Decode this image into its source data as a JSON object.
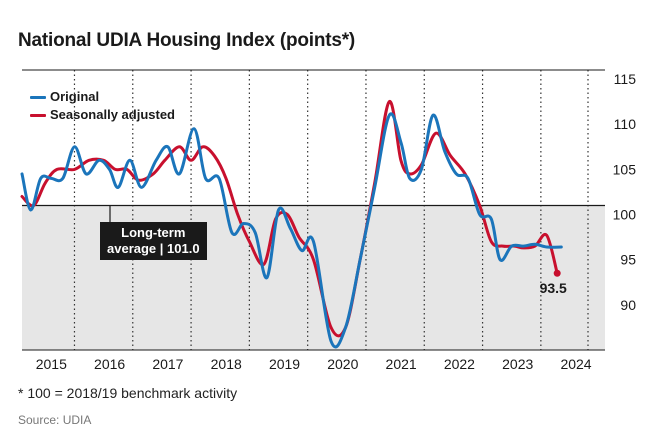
{
  "title": "National UDIA Housing Index (points*)",
  "footnote": "* 100 = 2018/19 benchmark activity",
  "source": "Source: UDIA",
  "colors": {
    "original": "#1b75bb",
    "seasonally_adjusted": "#c8102e",
    "text": "#1a1a1a",
    "shade": "#e6e6e6"
  },
  "chart_data": {
    "type": "line",
    "title": "National UDIA Housing Index (points*)",
    "xlabel": "",
    "ylabel": "",
    "xlim": [
      2014.6,
      2024.6
    ],
    "ylim": [
      85,
      116
    ],
    "x_ticks": [
      "2015",
      "2016",
      "2017",
      "2018",
      "2019",
      "2020",
      "2021",
      "2022",
      "2023",
      "2024"
    ],
    "y_ticks": [
      "90",
      "95",
      "100",
      "105",
      "110",
      "115"
    ],
    "y_tick_values": [
      90,
      95,
      100,
      105,
      110,
      115
    ],
    "grid": "vertical dotted at year boundaries",
    "legend": "top-left",
    "reference_line": {
      "value": 101.0,
      "label_line1": "Long-term",
      "label_line2": "average | 101.0"
    },
    "end_label": "93.5",
    "series": [
      {
        "name": "Original",
        "points": [
          [
            2014.6,
            104.5
          ],
          [
            2014.75,
            100.5
          ],
          [
            2014.92,
            104.0
          ],
          [
            2015.1,
            104.0
          ],
          [
            2015.3,
            104.0
          ],
          [
            2015.5,
            107.5
          ],
          [
            2015.7,
            104.5
          ],
          [
            2015.92,
            106.0
          ],
          [
            2016.1,
            105.0
          ],
          [
            2016.25,
            103.0
          ],
          [
            2016.45,
            106.0
          ],
          [
            2016.65,
            103.0
          ],
          [
            2016.9,
            106.0
          ],
          [
            2017.1,
            107.5
          ],
          [
            2017.3,
            104.5
          ],
          [
            2017.55,
            109.5
          ],
          [
            2017.75,
            104.0
          ],
          [
            2017.98,
            104.0
          ],
          [
            2018.2,
            98.0
          ],
          [
            2018.4,
            99.0
          ],
          [
            2018.6,
            98.0
          ],
          [
            2018.8,
            93.0
          ],
          [
            2019.0,
            100.5
          ],
          [
            2019.2,
            98.5
          ],
          [
            2019.4,
            96.0
          ],
          [
            2019.6,
            97.0
          ],
          [
            2019.9,
            86.0
          ],
          [
            2020.15,
            87.5
          ],
          [
            2020.4,
            95.0
          ],
          [
            2020.65,
            103.0
          ],
          [
            2020.9,
            111.0
          ],
          [
            2021.1,
            108.0
          ],
          [
            2021.25,
            104.0
          ],
          [
            2021.45,
            105.0
          ],
          [
            2021.65,
            111.0
          ],
          [
            2021.85,
            107.0
          ],
          [
            2022.05,
            104.5
          ],
          [
            2022.25,
            104.0
          ],
          [
            2022.45,
            100.0
          ],
          [
            2022.65,
            99.5
          ],
          [
            2022.8,
            95.0
          ],
          [
            2023.0,
            96.5
          ],
          [
            2023.2,
            96.5
          ],
          [
            2023.4,
            96.7
          ],
          [
            2023.6,
            96.4
          ],
          [
            2023.85,
            96.4
          ]
        ]
      },
      {
        "name": "Seasonally adjusted",
        "points": [
          [
            2014.6,
            102.0
          ],
          [
            2014.8,
            101.0
          ],
          [
            2015.0,
            103.5
          ],
          [
            2015.2,
            105.0
          ],
          [
            2015.5,
            105.0
          ],
          [
            2015.75,
            106.0
          ],
          [
            2016.0,
            106.0
          ],
          [
            2016.2,
            105.0
          ],
          [
            2016.4,
            105.0
          ],
          [
            2016.6,
            103.8
          ],
          [
            2016.85,
            104.5
          ],
          [
            2017.05,
            106.0
          ],
          [
            2017.3,
            107.5
          ],
          [
            2017.5,
            106.0
          ],
          [
            2017.7,
            107.5
          ],
          [
            2017.9,
            106.5
          ],
          [
            2018.1,
            104.0
          ],
          [
            2018.3,
            100.0
          ],
          [
            2018.5,
            97.0
          ],
          [
            2018.75,
            94.5
          ],
          [
            2018.95,
            99.5
          ],
          [
            2019.15,
            100.0
          ],
          [
            2019.35,
            97.5
          ],
          [
            2019.6,
            95.0
          ],
          [
            2019.9,
            87.5
          ],
          [
            2020.15,
            87.5
          ],
          [
            2020.4,
            95.0
          ],
          [
            2020.65,
            103.5
          ],
          [
            2020.9,
            112.5
          ],
          [
            2021.1,
            106.0
          ],
          [
            2021.25,
            104.5
          ],
          [
            2021.45,
            105.5
          ],
          [
            2021.7,
            109.0
          ],
          [
            2021.95,
            106.5
          ],
          [
            2022.2,
            104.5
          ],
          [
            2022.45,
            101.0
          ],
          [
            2022.65,
            97.0
          ],
          [
            2022.85,
            96.5
          ],
          [
            2023.05,
            96.5
          ],
          [
            2023.2,
            96.3
          ],
          [
            2023.4,
            96.5
          ],
          [
            2023.6,
            97.7
          ],
          [
            2023.78,
            93.5
          ]
        ]
      }
    ]
  }
}
